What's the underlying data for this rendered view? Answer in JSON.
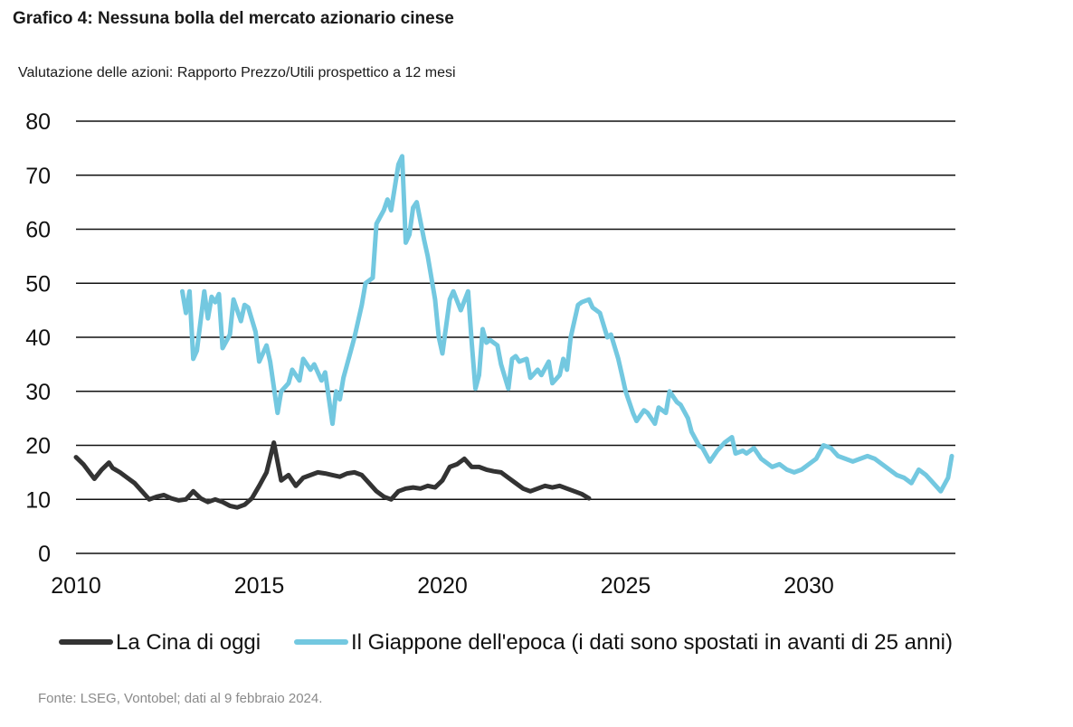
{
  "chart_data": {
    "type": "line",
    "title": "Grafico 4: Nessuna bolla del mercato azionario cinese",
    "subtitle": "Valutazione delle azioni: Rapporto Prezzo/Utili prospettico a 12 mesi",
    "xlim": [
      2010,
      2034
    ],
    "ylim": [
      0,
      80
    ],
    "x_ticks": [
      "2010",
      "2015",
      "2020",
      "2025",
      "2030"
    ],
    "y_ticks": [
      "0",
      "10",
      "20",
      "30",
      "40",
      "50",
      "60",
      "70",
      "80"
    ],
    "legend_position": "bottom",
    "series": [
      {
        "name": "La Cina di oggi",
        "color": "#333333",
        "x": [
          2010.0,
          2010.2,
          2010.5,
          2010.7,
          2010.9,
          2011.0,
          2011.2,
          2011.4,
          2011.6,
          2011.8,
          2012.0,
          2012.2,
          2012.4,
          2012.6,
          2012.8,
          2013.0,
          2013.2,
          2013.4,
          2013.6,
          2013.8,
          2014.0,
          2014.2,
          2014.4,
          2014.6,
          2014.8,
          2015.0,
          2015.2,
          2015.4,
          2015.6,
          2015.8,
          2016.0,
          2016.2,
          2016.4,
          2016.6,
          2016.8,
          2017.0,
          2017.2,
          2017.4,
          2017.6,
          2017.8,
          2018.0,
          2018.2,
          2018.4,
          2018.6,
          2018.8,
          2019.0,
          2019.2,
          2019.4,
          2019.6,
          2019.8,
          2020.0,
          2020.2,
          2020.4,
          2020.6,
          2020.8,
          2021.0,
          2021.2,
          2021.4,
          2021.6,
          2021.8,
          2022.0,
          2022.2,
          2022.4,
          2022.6,
          2022.8,
          2023.0,
          2023.2,
          2023.4,
          2023.6,
          2023.8,
          2024.0
        ],
        "values": [
          17.8,
          16.5,
          13.8,
          15.5,
          16.8,
          15.8,
          15.0,
          14.0,
          13.0,
          11.5,
          10.0,
          10.5,
          10.8,
          10.2,
          9.8,
          10.0,
          11.5,
          10.2,
          9.5,
          10.0,
          9.5,
          8.8,
          8.5,
          9.0,
          10.2,
          12.5,
          15.0,
          20.5,
          13.5,
          14.5,
          12.5,
          14.0,
          14.5,
          15.0,
          14.8,
          14.5,
          14.2,
          14.8,
          15.0,
          14.5,
          13.0,
          11.5,
          10.5,
          10.0,
          11.5,
          12.0,
          12.2,
          12.0,
          12.5,
          12.2,
          13.5,
          16.0,
          16.5,
          17.5,
          16.0,
          16.0,
          15.5,
          15.2,
          15.0,
          14.0,
          13.0,
          12.0,
          11.5,
          12.0,
          12.5,
          12.2,
          12.5,
          12.0,
          11.5,
          11.0,
          10.2
        ]
      },
      {
        "name": "Il Giappone dell'epoca (i dati sono spostati in avanti di 25 anni)",
        "color": "#73c8e0",
        "x": [
          2012.9,
          2013.0,
          2013.1,
          2013.2,
          2013.3,
          2013.5,
          2013.6,
          2013.7,
          2013.8,
          2013.9,
          2014.0,
          2014.2,
          2014.3,
          2014.5,
          2014.6,
          2014.7,
          2014.9,
          2015.0,
          2015.2,
          2015.3,
          2015.5,
          2015.6,
          2015.8,
          2015.9,
          2016.1,
          2016.2,
          2016.4,
          2016.5,
          2016.7,
          2016.8,
          2017.0,
          2017.1,
          2017.2,
          2017.3,
          2017.5,
          2017.6,
          2017.8,
          2017.9,
          2018.1,
          2018.2,
          2018.4,
          2018.5,
          2018.6,
          2018.8,
          2018.9,
          2019.0,
          2019.1,
          2019.2,
          2019.3,
          2019.5,
          2019.6,
          2019.8,
          2019.9,
          2020.0,
          2020.2,
          2020.3,
          2020.5,
          2020.7,
          2020.8,
          2020.9,
          2021.0,
          2021.1,
          2021.2,
          2021.3,
          2021.5,
          2021.6,
          2021.8,
          2021.9,
          2022.0,
          2022.1,
          2022.3,
          2022.4,
          2022.6,
          2022.7,
          2022.9,
          2023.0,
          2023.2,
          2023.3,
          2023.4,
          2023.5,
          2023.7,
          2023.8,
          2024.0,
          2024.1,
          2024.2,
          2024.3,
          2024.5,
          2024.6,
          2024.8,
          2024.9,
          2025.0,
          2025.2,
          2025.3,
          2025.5,
          2025.6,
          2025.8,
          2025.9,
          2026.1,
          2026.2,
          2026.4,
          2026.5,
          2026.7,
          2026.8,
          2027.0,
          2027.1,
          2027.3,
          2027.5,
          2027.7,
          2027.9,
          2028.0,
          2028.2,
          2028.3,
          2028.5,
          2028.7,
          2028.8,
          2029.0,
          2029.2,
          2029.4,
          2029.6,
          2029.8,
          2030.0,
          2030.2,
          2030.4,
          2030.6,
          2030.8,
          2031.0,
          2031.2,
          2031.4,
          2031.6,
          2031.8,
          2032.0,
          2032.2,
          2032.4,
          2032.6,
          2032.8,
          2033.0,
          2033.2,
          2033.4,
          2033.6,
          2033.8,
          2033.9
        ],
        "values": [
          48.5,
          44.5,
          48.5,
          36.0,
          37.5,
          48.5,
          43.5,
          47.5,
          46.5,
          48.0,
          38.0,
          40.5,
          47.0,
          43.0,
          46.0,
          45.5,
          41.0,
          35.5,
          38.5,
          35.5,
          26.0,
          30.0,
          31.5,
          34.0,
          32.0,
          36.0,
          34.0,
          35.0,
          32.0,
          33.5,
          24.0,
          30.0,
          28.5,
          32.5,
          37.5,
          40.0,
          46.0,
          50.0,
          51.0,
          61.0,
          63.5,
          65.5,
          63.5,
          72.0,
          73.5,
          57.5,
          59.0,
          64.0,
          65.0,
          58.0,
          55.0,
          47.0,
          40.0,
          37.0,
          47.0,
          48.5,
          45.0,
          48.5,
          39.0,
          30.5,
          33.0,
          41.5,
          39.0,
          39.5,
          38.5,
          35.0,
          30.5,
          36.0,
          36.5,
          35.5,
          36.0,
          32.5,
          34.0,
          33.0,
          35.5,
          31.5,
          33.0,
          36.0,
          34.0,
          40.0,
          46.0,
          46.5,
          47.0,
          45.5,
          45.0,
          44.5,
          40.0,
          40.5,
          36.0,
          33.0,
          30.0,
          26.0,
          24.5,
          26.5,
          26.0,
          24.0,
          27.0,
          26.0,
          30.0,
          28.0,
          27.5,
          25.0,
          22.5,
          20.0,
          19.5,
          17.0,
          19.0,
          20.5,
          21.5,
          18.5,
          19.0,
          18.5,
          19.5,
          17.5,
          17.0,
          16.0,
          16.5,
          15.5,
          15.0,
          15.5,
          16.5,
          17.5,
          20.0,
          19.5,
          18.0,
          17.5,
          17.0,
          17.5,
          18.0,
          17.5,
          16.5,
          15.5,
          14.5,
          14.0,
          13.0,
          15.5,
          14.5,
          13.0,
          11.5,
          14.0,
          18.0
        ]
      }
    ],
    "source": "Fonte: LSEG, Vontobel; dati al 9 febbraio 2024."
  }
}
